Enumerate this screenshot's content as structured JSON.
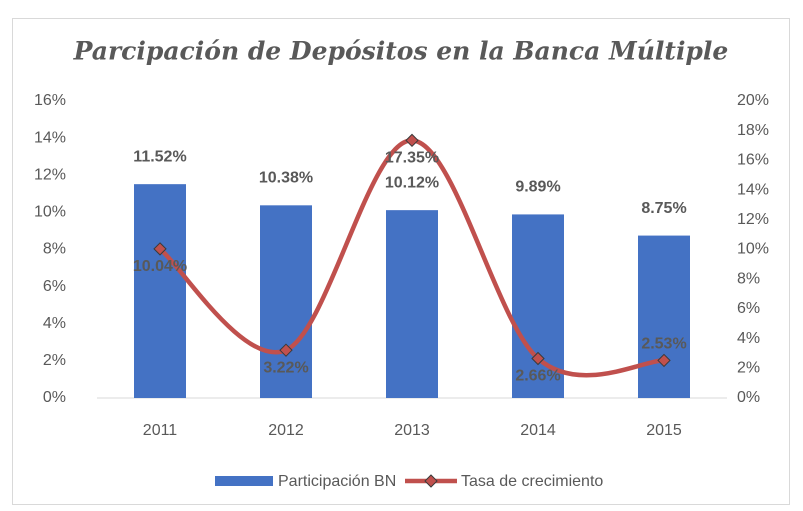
{
  "chart_data": {
    "type": "bar_line",
    "title": "Parcipación de Depósitos en la Banca Múltiple",
    "categories": [
      "2011",
      "2012",
      "2013",
      "2014",
      "2015"
    ],
    "series": [
      {
        "name": "Participación BN",
        "type": "bar",
        "color": "#4472c4",
        "values": [
          11.52,
          10.38,
          10.12,
          9.89,
          8.75
        ],
        "value_labels": [
          "11.52%",
          "10.38%",
          "10.12%",
          "9.89%",
          "8.75%"
        ]
      },
      {
        "name": "Tasa de crecimiento",
        "type": "line",
        "axis": "y2",
        "color": "#c0504d",
        "values": [
          10.04,
          3.22,
          17.35,
          2.66,
          2.53
        ],
        "value_labels": [
          "10.04%",
          "3.22%",
          "17.35%",
          "2.66%",
          "2.53%"
        ]
      }
    ],
    "ylim": [
      0,
      16
    ],
    "yticks": [
      {
        "value": 0,
        "label": "0%"
      },
      {
        "value": 2,
        "label": "2%"
      },
      {
        "value": 4,
        "label": "4%"
      },
      {
        "value": 6,
        "label": "6%"
      },
      {
        "value": 8,
        "label": "8%"
      },
      {
        "value": 10,
        "label": "10%"
      },
      {
        "value": 12,
        "label": "12%"
      },
      {
        "value": 14,
        "label": "14%"
      },
      {
        "value": 16,
        "label": "16%"
      }
    ],
    "y2lim": [
      0,
      20
    ],
    "y2ticks": [
      {
        "value": 0,
        "label": "0%"
      },
      {
        "value": 2,
        "label": "2%"
      },
      {
        "value": 4,
        "label": "4%"
      },
      {
        "value": 6,
        "label": "6%"
      },
      {
        "value": 8,
        "label": "8%"
      },
      {
        "value": 10,
        "label": "10%"
      },
      {
        "value": 12,
        "label": "12%"
      },
      {
        "value": 14,
        "label": "14%"
      },
      {
        "value": 16,
        "label": "16%"
      },
      {
        "value": 18,
        "label": "18%"
      },
      {
        "value": 20,
        "label": "20%"
      }
    ],
    "legend": "bottom"
  }
}
